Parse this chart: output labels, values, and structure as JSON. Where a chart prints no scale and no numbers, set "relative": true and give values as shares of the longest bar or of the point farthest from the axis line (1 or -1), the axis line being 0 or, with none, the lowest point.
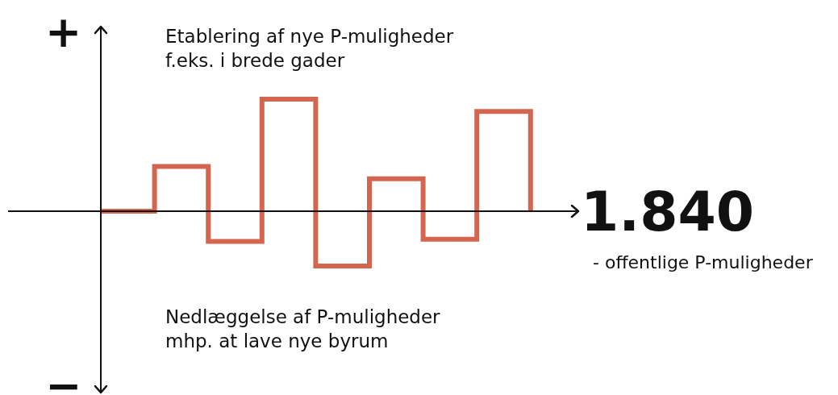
{
  "chart_data": {
    "type": "step",
    "relative": true,
    "categories": [
      null,
      null,
      null,
      null,
      null,
      null,
      null,
      null,
      null
    ],
    "series": [
      {
        "color": "#d4654f",
        "values": [
          0,
          0.4,
          -0.27,
          1,
          -0.49,
          0.29,
          -0.25,
          0.89,
          0
        ]
      }
    ],
    "marker": "none",
    "line_style": "solid",
    "grid": false,
    "legend": false,
    "annotations": [
      "+",
      "−",
      "Etablering af nye P-muligheder\nf.eks. i brede gader",
      "Nedlæggelse af P-muligheder\nmhp. at lave nye byrum",
      "1.840",
      "- offentlige P-muligheder"
    ]
  }
}
